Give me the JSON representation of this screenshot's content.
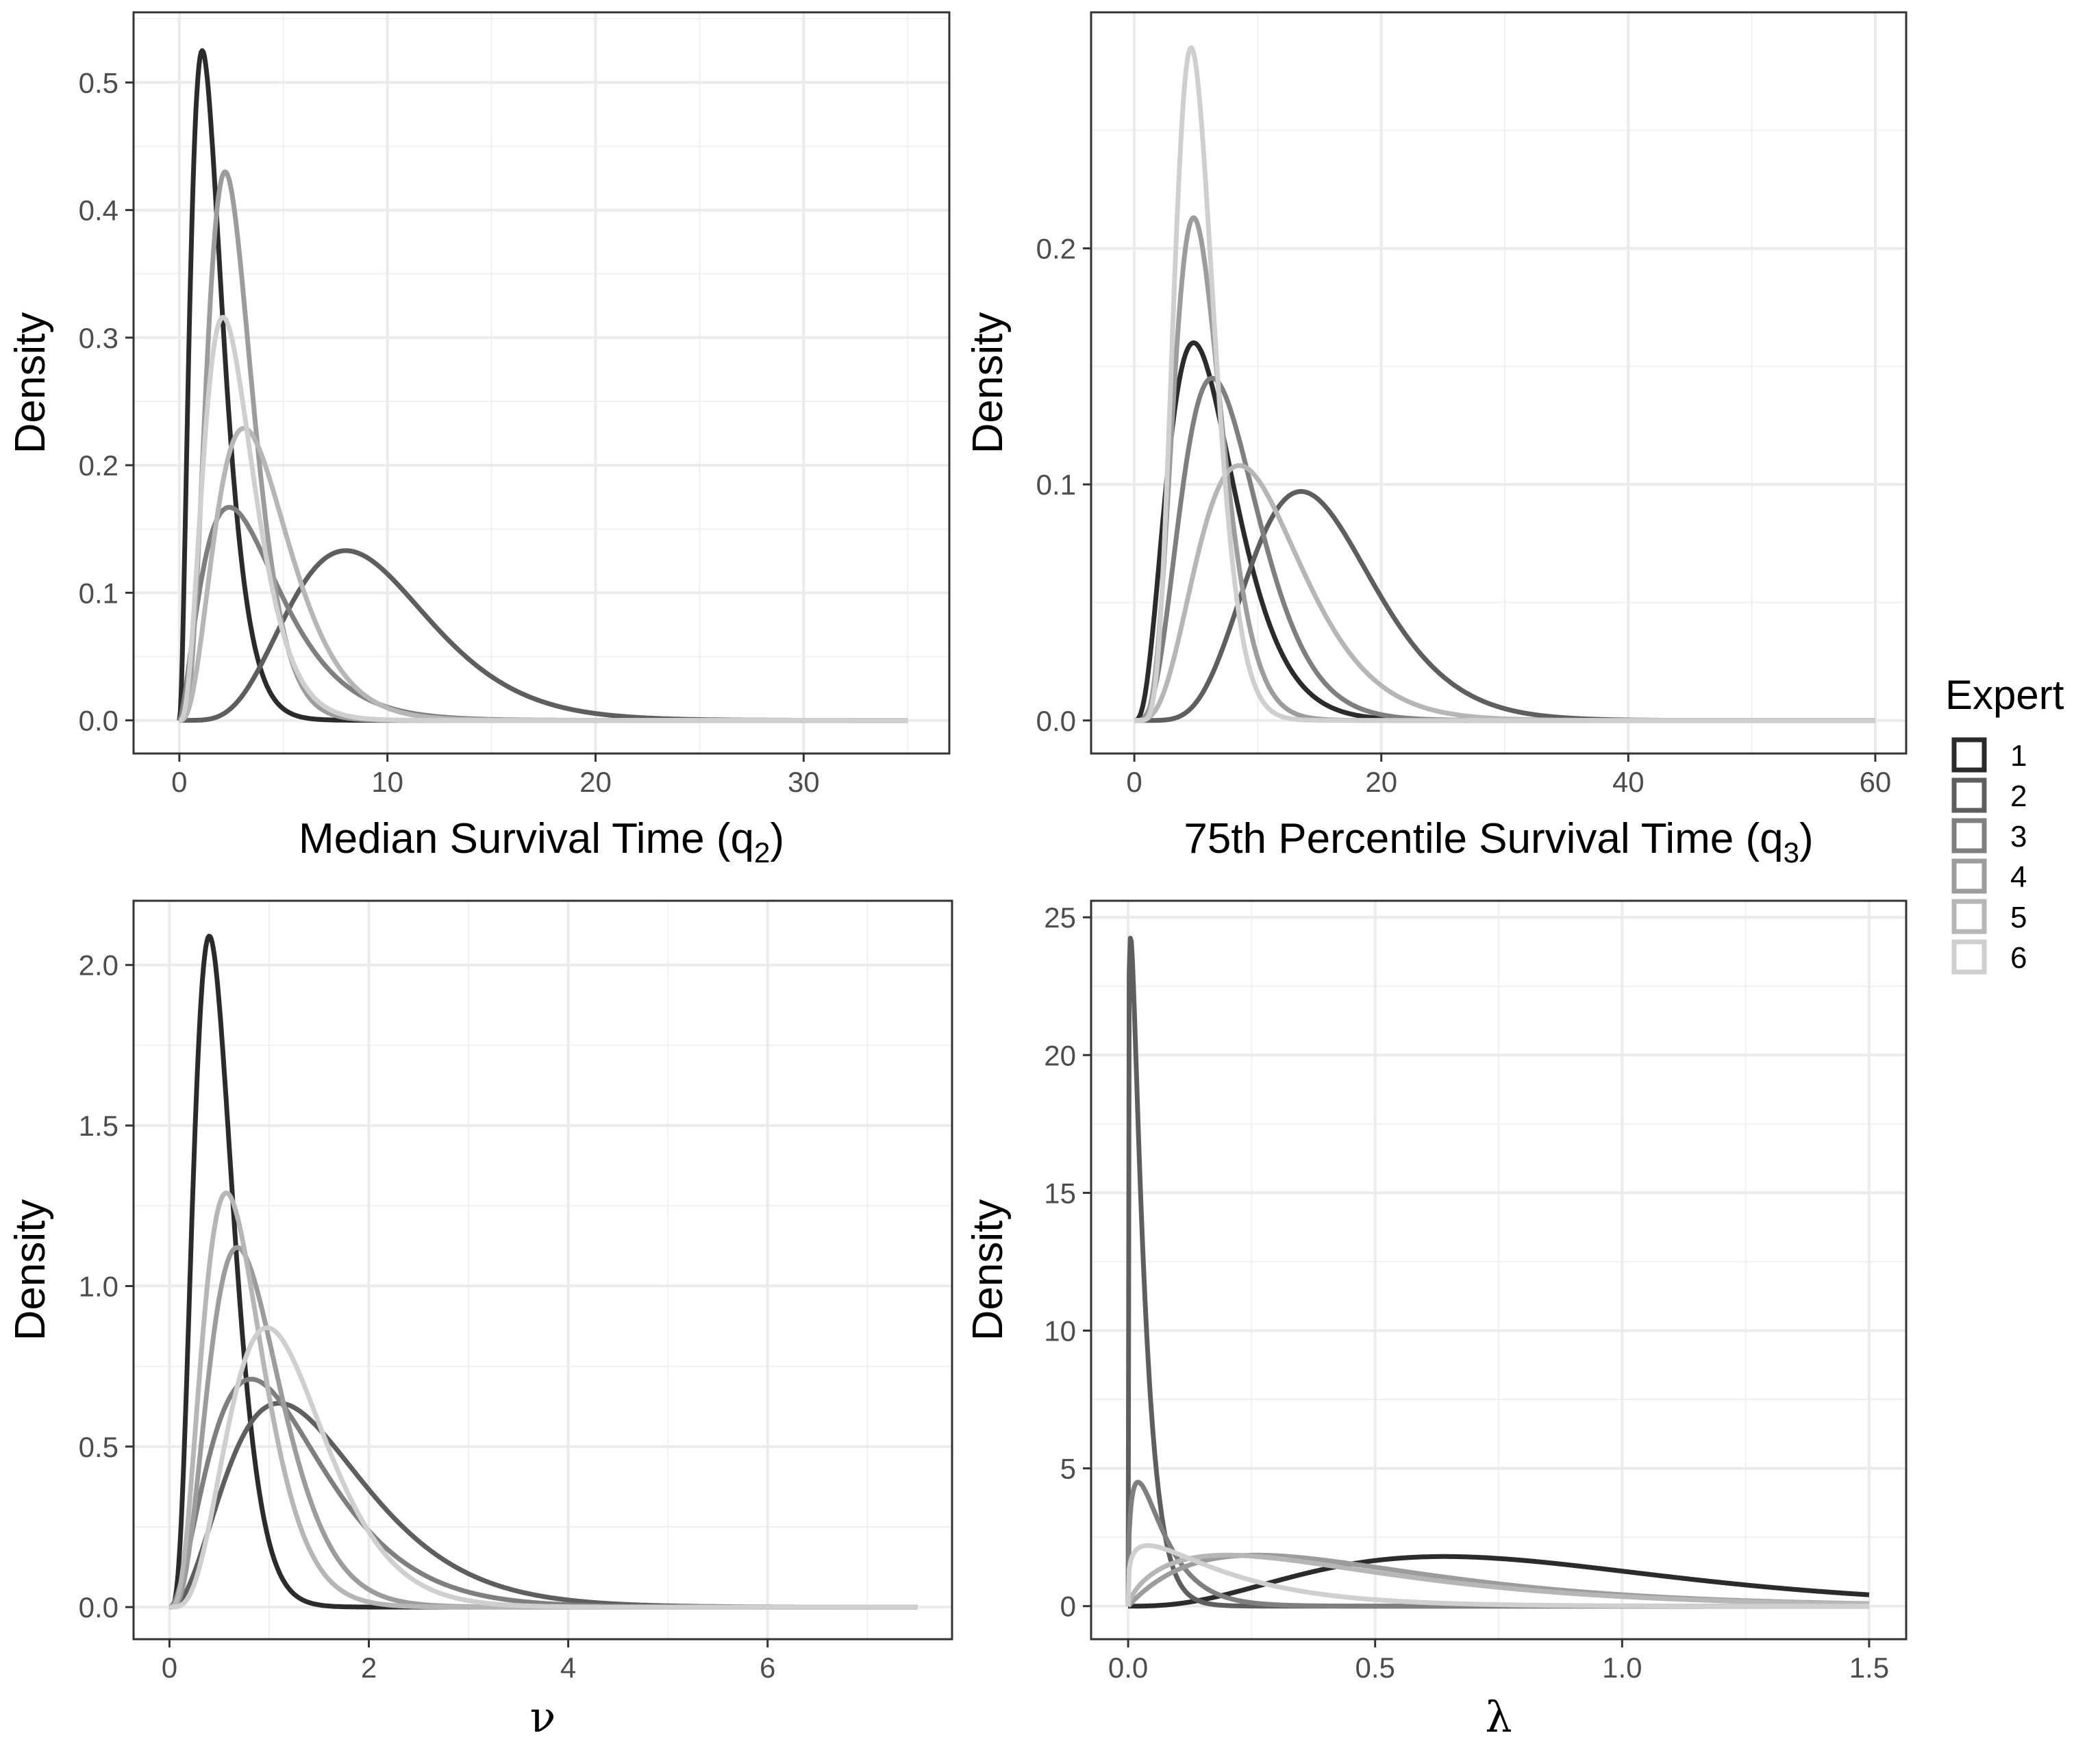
{
  "legend": {
    "title": "Expert",
    "entries": [
      "1",
      "2",
      "3",
      "4",
      "5",
      "6"
    ],
    "colors": [
      "#2b2b2b",
      "#5e5e5e",
      "#7f7f7f",
      "#9c9c9c",
      "#b6b6b6",
      "#cfcfcf"
    ]
  },
  "chart_data": [
    {
      "type": "line",
      "panel": "top-left",
      "xlabel": "Median Survival Time (q",
      "xlabel_sub": "2",
      "xlabel_end": ")",
      "ylabel": "Density",
      "xlim": [
        -2.2,
        37
      ],
      "ylim": [
        -0.026,
        0.555
      ],
      "xticks": [
        0,
        10,
        20,
        30
      ],
      "xtick_labels": [
        "0",
        "10",
        "20",
        "30"
      ],
      "yticks": [
        0.0,
        0.1,
        0.2,
        0.3,
        0.4,
        0.5
      ],
      "ytick_labels": [
        "0.0",
        "0.1",
        "0.2",
        "0.3",
        "0.4",
        "0.5"
      ],
      "x_range": [
        0,
        35
      ],
      "grid": true,
      "series": [
        {
          "name": "1",
          "peak_x": 1.1,
          "peak_y": 0.525,
          "shape": 3.0
        },
        {
          "name": "2",
          "peak_x": 8.0,
          "peak_y": 0.133,
          "shape": 6.5
        },
        {
          "name": "3",
          "peak_x": 2.4,
          "peak_y": 0.167,
          "shape": 2.6
        },
        {
          "name": "4",
          "peak_x": 2.2,
          "peak_y": 0.43,
          "shape": 5.0
        },
        {
          "name": "5",
          "peak_x": 3.1,
          "peak_y": 0.229,
          "shape": 4.0
        },
        {
          "name": "6",
          "peak_x": 2.1,
          "peak_y": 0.316,
          "shape": 4.0
        }
      ]
    },
    {
      "type": "line",
      "panel": "top-right",
      "xlabel": "75th Percentile Survival Time (q",
      "xlabel_sub": "3",
      "xlabel_end": ")",
      "ylabel": "Density",
      "xlim": [
        -3.5,
        62.5
      ],
      "ylim": [
        -0.014,
        0.3
      ],
      "xticks": [
        0,
        20,
        40,
        60
      ],
      "xtick_labels": [
        "0",
        "20",
        "40",
        "60"
      ],
      "yticks": [
        0.0,
        0.1,
        0.2
      ],
      "ytick_labels": [
        "0.0",
        "0.1",
        "0.2"
      ],
      "x_range": [
        0,
        60
      ],
      "grid": true,
      "series": [
        {
          "name": "1",
          "peak_x": 4.8,
          "peak_y": 0.16,
          "shape": 4.0
        },
        {
          "name": "2",
          "peak_x": 13.5,
          "peak_y": 0.097,
          "shape": 8.0
        },
        {
          "name": "3",
          "peak_x": 6.3,
          "peak_y": 0.145,
          "shape": 5.0
        },
        {
          "name": "4",
          "peak_x": 4.8,
          "peak_y": 0.213,
          "shape": 7.0
        },
        {
          "name": "5",
          "peak_x": 8.5,
          "peak_y": 0.108,
          "shape": 5.0
        },
        {
          "name": "6",
          "peak_x": 4.6,
          "peak_y": 0.285,
          "shape": 9.0
        }
      ]
    },
    {
      "type": "line",
      "panel": "bottom-left",
      "xlabel": "ν",
      "ylabel": "Density",
      "xlim": [
        -0.36,
        7.85
      ],
      "ylim": [
        -0.1,
        2.2
      ],
      "xticks": [
        0,
        2,
        4,
        6
      ],
      "xtick_labels": [
        "0",
        "2",
        "4",
        "6"
      ],
      "yticks": [
        0.0,
        0.5,
        1.0,
        1.5,
        2.0
      ],
      "ytick_labels": [
        "0.0",
        "0.5",
        "1.0",
        "1.5",
        "2.0"
      ],
      "x_range": [
        0,
        7.5
      ],
      "grid": true,
      "series": [
        {
          "name": "1",
          "peak_x": 0.4,
          "peak_y": 2.09,
          "shape": 5.0
        },
        {
          "name": "2",
          "peak_x": 1.1,
          "peak_y": 0.635,
          "shape": 3.5
        },
        {
          "name": "3",
          "peak_x": 0.82,
          "peak_y": 0.71,
          "shape": 3.0
        },
        {
          "name": "4",
          "peak_x": 0.68,
          "peak_y": 1.12,
          "shape": 4.5
        },
        {
          "name": "5",
          "peak_x": 0.57,
          "peak_y": 1.29,
          "shape": 4.5
        },
        {
          "name": "6",
          "peak_x": 0.98,
          "peak_y": 0.87,
          "shape": 5.0
        }
      ]
    },
    {
      "type": "line",
      "panel": "bottom-right",
      "xlabel": "λ",
      "ylabel": "Density",
      "xlim": [
        -0.075,
        1.575
      ],
      "ylim": [
        -1.2,
        25.6
      ],
      "xticks": [
        0.0,
        0.5,
        1.0,
        1.5
      ],
      "xtick_labels": [
        "0.0",
        "0.5",
        "1.0",
        "1.5"
      ],
      "yticks": [
        0,
        5,
        10,
        15,
        20,
        25
      ],
      "ytick_labels": [
        "0",
        "5",
        "10",
        "15",
        "20",
        "25"
      ],
      "x_range": [
        0,
        1.5
      ],
      "grid": true,
      "series": [
        {
          "name": "1",
          "peak_x": 0.64,
          "peak_y": 1.8,
          "shape": 4.0
        },
        {
          "name": "2",
          "peak_x": 0.005,
          "peak_y": 24.3,
          "shape": 1.2
        },
        {
          "name": "3",
          "peak_x": 0.02,
          "peak_y": 4.5,
          "shape": 1.4
        },
        {
          "name": "4",
          "peak_x": 0.26,
          "peak_y": 1.85,
          "shape": 2.0
        },
        {
          "name": "5",
          "peak_x": 0.2,
          "peak_y": 1.85,
          "shape": 1.7
        },
        {
          "name": "6",
          "peak_x": 0.04,
          "peak_y": 2.2,
          "shape": 1.25
        }
      ]
    }
  ]
}
